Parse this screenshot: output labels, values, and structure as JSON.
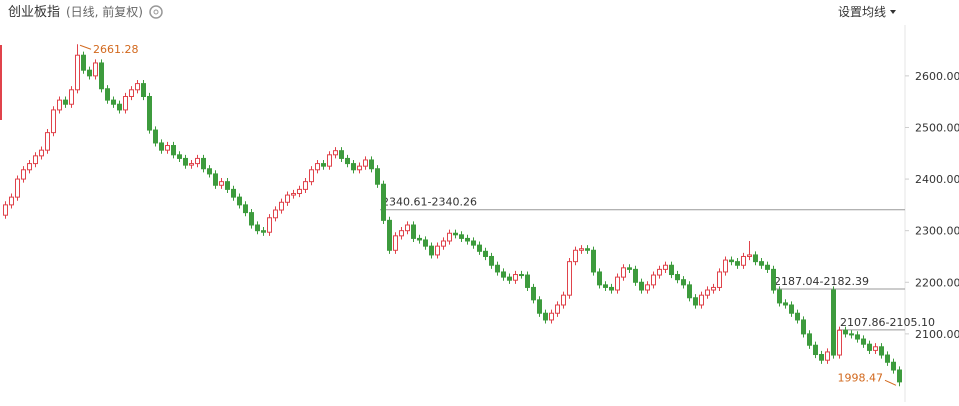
{
  "header": {
    "title": "创业板指",
    "subtitle": "(日线, 前复权)",
    "button": "设置均线"
  },
  "chart_data": {
    "type": "candlestick",
    "up_color": "#e0434b",
    "down_color": "#3d9b3d",
    "ylim": [
      1968,
      2747
    ],
    "yticks": [
      {
        "value": 2100,
        "label": "2100.00"
      },
      {
        "value": 2200,
        "label": "2200.00"
      },
      {
        "value": 2300,
        "label": "2300.00"
      },
      {
        "value": 2400,
        "label": "2400.00"
      },
      {
        "value": 2500,
        "label": "2500.00"
      },
      {
        "value": 2600,
        "label": "2600.00"
      }
    ],
    "high_label": "2661.28",
    "low_label": "1998.47",
    "gap_lines": [
      {
        "label": "2340.61-2340.26",
        "value": 2340.61
      },
      {
        "label": "2187.04-2182.39",
        "value": 2187.04
      },
      {
        "label": "2107.86-2105.10",
        "value": 2107.86
      }
    ],
    "open": [
      2330,
      2350,
      2365,
      2400,
      2418,
      2430,
      2445,
      2456,
      2490,
      2534,
      2553,
      2545,
      2573,
      2640,
      2611,
      2600,
      2625,
      2575,
      2553,
      2545,
      2534,
      2560,
      2573,
      2585,
      2560,
      2495,
      2470,
      2456,
      2465,
      2447,
      2440,
      2427,
      2430,
      2440,
      2420,
      2410,
      2388,
      2395,
      2380,
      2365,
      2350,
      2335,
      2311,
      2300,
      2297,
      2325,
      2340,
      2355,
      2369,
      2372,
      2380,
      2395,
      2418,
      2430,
      2425,
      2447,
      2455,
      2440,
      2430,
      2418,
      2425,
      2437,
      2420,
      2390,
      2320,
      2262,
      2290,
      2300,
      2311,
      2285,
      2282,
      2270,
      2253,
      2270,
      2280,
      2295,
      2292,
      2285,
      2280,
      2272,
      2260,
      2250,
      2233,
      2220,
      2210,
      2204,
      2215,
      2214,
      2190,
      2166,
      2140,
      2127,
      2140,
      2156,
      2175,
      2240,
      2262,
      2265,
      2262,
      2220,
      2195,
      2190,
      2185,
      2210,
      2228,
      2225,
      2200,
      2185,
      2195,
      2214,
      2225,
      2233,
      2215,
      2205,
      2195,
      2170,
      2156,
      2175,
      2185,
      2190,
      2220,
      2243,
      2240,
      2233,
      2250,
      2253,
      2240,
      2233,
      2225,
      2185,
      2160,
      2156,
      2140,
      2127,
      2100,
      2078,
      2060,
      2049,
      2185,
      2059,
      2107,
      2100,
      2098,
      2090,
      2080,
      2068,
      2075,
      2059,
      2045,
      2030
    ],
    "close": [
      2350,
      2365,
      2400,
      2418,
      2430,
      2445,
      2456,
      2490,
      2534,
      2553,
      2545,
      2573,
      2640,
      2611,
      2600,
      2625,
      2575,
      2553,
      2545,
      2534,
      2560,
      2573,
      2585,
      2560,
      2495,
      2470,
      2456,
      2465,
      2447,
      2440,
      2427,
      2430,
      2440,
      2420,
      2410,
      2388,
      2395,
      2380,
      2365,
      2350,
      2335,
      2311,
      2300,
      2297,
      2325,
      2340,
      2355,
      2369,
      2372,
      2380,
      2395,
      2418,
      2430,
      2425,
      2447,
      2455,
      2440,
      2430,
      2418,
      2425,
      2437,
      2420,
      2390,
      2320,
      2262,
      2290,
      2300,
      2311,
      2285,
      2282,
      2270,
      2253,
      2270,
      2280,
      2295,
      2292,
      2285,
      2280,
      2272,
      2260,
      2250,
      2233,
      2220,
      2210,
      2204,
      2215,
      2214,
      2190,
      2166,
      2140,
      2127,
      2140,
      2156,
      2175,
      2240,
      2262,
      2265,
      2262,
      2220,
      2195,
      2190,
      2185,
      2210,
      2228,
      2225,
      2200,
      2185,
      2195,
      2214,
      2225,
      2233,
      2215,
      2205,
      2195,
      2170,
      2156,
      2175,
      2185,
      2190,
      2220,
      2243,
      2240,
      2233,
      2250,
      2253,
      2240,
      2233,
      2225,
      2185,
      2160,
      2156,
      2140,
      2127,
      2100,
      2078,
      2060,
      2049,
      2065,
      2059,
      2107,
      2100,
      2098,
      2090,
      2080,
      2068,
      2075,
      2059,
      2045,
      2030,
      2007
    ],
    "high": [
      2357,
      2372,
      2407,
      2425,
      2437,
      2452,
      2463,
      2497,
      2541,
      2560,
      2560,
      2580,
      2661.28,
      2647,
      2618,
      2632,
      2632,
      2582,
      2560,
      2552,
      2567,
      2580,
      2592,
      2592,
      2567,
      2502,
      2477,
      2472,
      2472,
      2454,
      2447,
      2437,
      2447,
      2447,
      2427,
      2417,
      2402,
      2402,
      2387,
      2372,
      2357,
      2342,
      2318,
      2307,
      2332,
      2347,
      2362,
      2376,
      2379,
      2387,
      2402,
      2425,
      2437,
      2437,
      2454,
      2462,
      2462,
      2447,
      2437,
      2432,
      2444,
      2444,
      2427,
      2397,
      2327,
      2297,
      2307,
      2318,
      2318,
      2292,
      2289,
      2277,
      2277,
      2287,
      2302,
      2302,
      2299,
      2292,
      2287,
      2279,
      2267,
      2257,
      2240,
      2227,
      2217,
      2222,
      2222,
      2221,
      2197,
      2173,
      2147,
      2147,
      2163,
      2182,
      2247,
      2269,
      2272,
      2272,
      2269,
      2227,
      2202,
      2197,
      2217,
      2235,
      2235,
      2232,
      2207,
      2202,
      2221,
      2232,
      2240,
      2240,
      2222,
      2212,
      2202,
      2177,
      2182,
      2192,
      2197,
      2227,
      2250,
      2250,
      2247,
      2257,
      2280,
      2260,
      2247,
      2240,
      2232,
      2192,
      2167,
      2163,
      2147,
      2134,
      2107,
      2085,
      2067,
      2072,
      2192,
      2114,
      2114,
      2107,
      2105,
      2097,
      2087,
      2082,
      2082,
      2066,
      2052,
      2037
    ],
    "low": [
      2323,
      2343,
      2358,
      2393,
      2411,
      2423,
      2438,
      2449,
      2483,
      2527,
      2538,
      2538,
      2566,
      2604,
      2593,
      2593,
      2568,
      2546,
      2538,
      2527,
      2527,
      2553,
      2566,
      2553,
      2488,
      2463,
      2449,
      2449,
      2440,
      2433,
      2420,
      2420,
      2423,
      2413,
      2403,
      2381,
      2381,
      2373,
      2358,
      2343,
      2328,
      2304,
      2293,
      2290,
      2290,
      2318,
      2333,
      2348,
      2362,
      2365,
      2373,
      2388,
      2411,
      2418,
      2418,
      2440,
      2433,
      2423,
      2411,
      2411,
      2418,
      2413,
      2383,
      2313,
      2255,
      2255,
      2283,
      2293,
      2278,
      2275,
      2263,
      2246,
      2246,
      2263,
      2273,
      2285,
      2278,
      2273,
      2265,
      2253,
      2243,
      2226,
      2213,
      2203,
      2197,
      2197,
      2207,
      2183,
      2159,
      2133,
      2120,
      2120,
      2133,
      2149,
      2168,
      2233,
      2255,
      2255,
      2213,
      2188,
      2183,
      2178,
      2178,
      2203,
      2218,
      2193,
      2178,
      2178,
      2188,
      2207,
      2218,
      2208,
      2198,
      2188,
      2163,
      2149,
      2149,
      2168,
      2178,
      2183,
      2213,
      2233,
      2226,
      2226,
      2243,
      2233,
      2226,
      2218,
      2178,
      2153,
      2149,
      2133,
      2120,
      2093,
      2071,
      2053,
      2042,
      2042,
      2052,
      2052,
      2093,
      2091,
      2083,
      2073,
      2061,
      2061,
      2052,
      2038,
      2023,
      1998.47
    ]
  }
}
